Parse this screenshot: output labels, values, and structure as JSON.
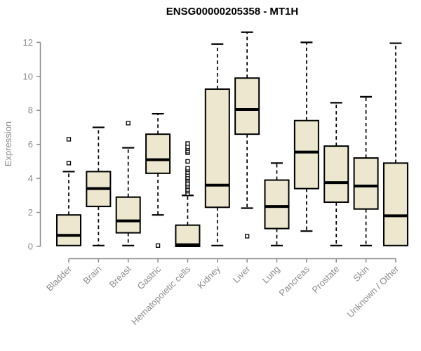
{
  "chart_data": {
    "type": "boxplot",
    "title": "ENSG00000205358 - MT1H",
    "ylabel": "Expression",
    "xlabel": "",
    "ylim": [
      0,
      12
    ],
    "yticks": [
      0,
      2,
      4,
      6,
      8,
      10,
      12
    ],
    "grid": false,
    "legend": null,
    "colors": {
      "box_fill": "#ECE7CE",
      "box_stroke": "#000000",
      "median": "#000000",
      "whisker": "#000000",
      "outlier_fill": "#ffffff",
      "axis": "#8C8C8C",
      "title": "#000000"
    },
    "categories": [
      {
        "label": "Bladder",
        "whisker_low": 0.05,
        "q1": 0.05,
        "median": 0.65,
        "q3": 1.85,
        "whisker_high": 4.4,
        "outliers": [
          4.9,
          6.3
        ]
      },
      {
        "label": "Brain",
        "whisker_low": 0.05,
        "q1": 2.35,
        "median": 3.4,
        "q3": 4.4,
        "whisker_high": 7.0,
        "outliers": []
      },
      {
        "label": "Breast",
        "whisker_low": 0.05,
        "q1": 0.8,
        "median": 1.5,
        "q3": 2.9,
        "whisker_high": 5.8,
        "outliers": [
          7.25
        ]
      },
      {
        "label": "Gastric",
        "whisker_low": 1.85,
        "q1": 4.3,
        "median": 5.1,
        "q3": 6.6,
        "whisker_high": 7.8,
        "outliers": [
          0.05
        ]
      },
      {
        "label": "Hematopoietic cells",
        "whisker_low": 0.0,
        "q1": 0.0,
        "median": 0.1,
        "q3": 1.25,
        "whisker_high": 3.0,
        "outliers": [
          3.1,
          3.25,
          3.35,
          3.5,
          3.6,
          3.7,
          3.85,
          3.95,
          4.05,
          4.2,
          4.35,
          4.5,
          4.6,
          5.0,
          5.5,
          5.6,
          5.75,
          5.85,
          6.05
        ]
      },
      {
        "label": "Kidney",
        "whisker_low": 0.05,
        "q1": 2.3,
        "median": 3.6,
        "q3": 9.25,
        "whisker_high": 11.9,
        "outliers": []
      },
      {
        "label": "Liver",
        "whisker_low": 2.25,
        "q1": 6.6,
        "median": 8.05,
        "q3": 9.9,
        "whisker_high": 12.6,
        "outliers": [
          0.6
        ]
      },
      {
        "label": "Lung",
        "whisker_low": 0.05,
        "q1": 1.05,
        "median": 2.35,
        "q3": 3.9,
        "whisker_high": 4.9,
        "outliers": []
      },
      {
        "label": "Pancreas",
        "whisker_low": 0.9,
        "q1": 3.4,
        "median": 5.55,
        "q3": 7.4,
        "whisker_high": 12.0,
        "outliers": []
      },
      {
        "label": "Prostate",
        "whisker_low": 0.05,
        "q1": 2.6,
        "median": 3.75,
        "q3": 5.9,
        "whisker_high": 8.45,
        "outliers": []
      },
      {
        "label": "Skin",
        "whisker_low": 0.05,
        "q1": 2.2,
        "median": 3.55,
        "q3": 5.2,
        "whisker_high": 8.8,
        "outliers": []
      },
      {
        "label": "Unknown / Other",
        "whisker_low": 0.05,
        "q1": 0.05,
        "median": 1.8,
        "q3": 4.9,
        "whisker_high": 11.95,
        "outliers": []
      }
    ]
  }
}
